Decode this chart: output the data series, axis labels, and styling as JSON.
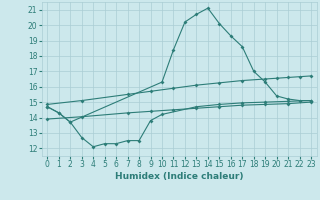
{
  "xlabel": "Humidex (Indice chaleur)",
  "xlim": [
    -0.5,
    23.5
  ],
  "ylim": [
    11.5,
    21.5
  ],
  "yticks": [
    12,
    13,
    14,
    15,
    16,
    17,
    18,
    19,
    20,
    21
  ],
  "xticks": [
    0,
    1,
    2,
    3,
    4,
    5,
    6,
    7,
    8,
    9,
    10,
    11,
    12,
    13,
    14,
    15,
    16,
    17,
    18,
    19,
    20,
    21,
    22,
    23
  ],
  "bg_color": "#cce8ec",
  "grid_color": "#aacdd4",
  "line_color": "#2d7d78",
  "line1_x": [
    0,
    1,
    2,
    10,
    11,
    12,
    13,
    14,
    15,
    16,
    17,
    18,
    19,
    20,
    21,
    22,
    23
  ],
  "line1_y": [
    14.7,
    14.3,
    13.7,
    16.3,
    18.4,
    20.2,
    20.7,
    21.1,
    20.1,
    19.3,
    18.6,
    17.0,
    16.3,
    15.4,
    15.2,
    15.1,
    15.1
  ],
  "line2_x": [
    0,
    3,
    7,
    9,
    11,
    13,
    15,
    17,
    19,
    20,
    21,
    22,
    23
  ],
  "line2_y": [
    14.85,
    15.1,
    15.5,
    15.7,
    15.9,
    16.1,
    16.25,
    16.4,
    16.5,
    16.55,
    16.6,
    16.65,
    16.7
  ],
  "line3_x": [
    0,
    3,
    7,
    9,
    11,
    13,
    15,
    17,
    19,
    21,
    23
  ],
  "line3_y": [
    13.9,
    14.05,
    14.3,
    14.4,
    14.5,
    14.6,
    14.7,
    14.8,
    14.85,
    14.9,
    15.0
  ],
  "line4_x": [
    0,
    1,
    2,
    3,
    4,
    5,
    6,
    7,
    8,
    9,
    10,
    13,
    15,
    17,
    19,
    21,
    23
  ],
  "line4_y": [
    14.7,
    14.3,
    13.7,
    12.7,
    12.1,
    12.3,
    12.3,
    12.5,
    12.5,
    13.8,
    14.2,
    14.7,
    14.85,
    14.95,
    15.0,
    15.05,
    15.1
  ],
  "tick_fontsize": 5.5,
  "xlabel_fontsize": 6.5
}
